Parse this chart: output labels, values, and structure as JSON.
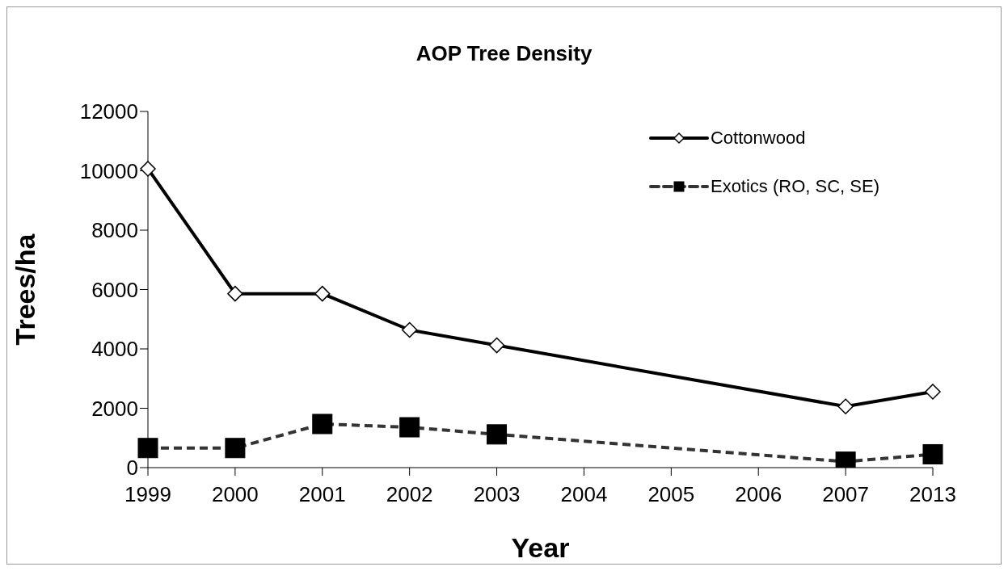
{
  "chart_data": {
    "type": "line",
    "title": "AOP Tree Density",
    "xlabel": "Year",
    "ylabel": "Trees/ha",
    "categories": [
      "1999",
      "2000",
      "2001",
      "2002",
      "2003",
      "2004",
      "2005",
      "2006",
      "2007",
      "2013"
    ],
    "series": [
      {
        "name": "Cottonwood",
        "color": "#000000",
        "marker": "diamond",
        "line_style": "solid",
        "values": [
          10070,
          5860,
          5860,
          4640,
          4120,
          null,
          null,
          null,
          2060,
          2560
        ]
      },
      {
        "name": "Exotics (RO, SC, SE)",
        "color": "#333333",
        "marker": "square",
        "line_style": "dashed",
        "values": [
          660,
          660,
          1470,
          1360,
          1120,
          null,
          null,
          null,
          200,
          450
        ]
      }
    ],
    "ylim": [
      0,
      12000
    ],
    "yticks": [
      0,
      2000,
      4000,
      6000,
      8000,
      10000,
      12000
    ],
    "grid": false,
    "legend": "top right"
  }
}
